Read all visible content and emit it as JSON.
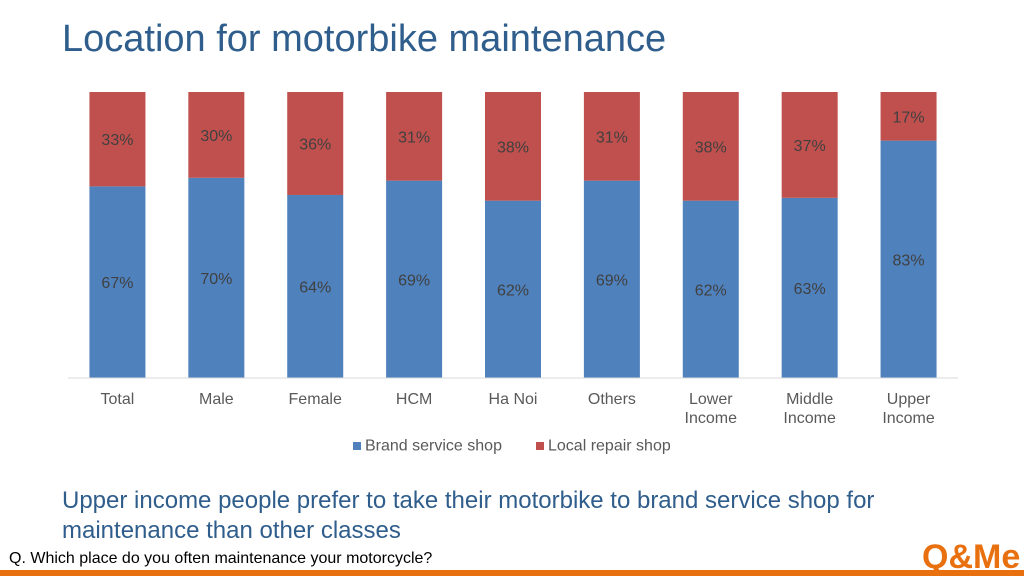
{
  "page": {
    "title": "Location for motorbike maintenance",
    "insight": "Upper income people prefer to take their motorbike to brand service shop for maintenance than other classes",
    "question": "Q. Which place do you often maintenance your motorcycle?",
    "logo": {
      "text": "Q&Me",
      "color": "#e8700f"
    }
  },
  "chart_data": {
    "type": "bar",
    "stacked": true,
    "percent": true,
    "title": "Location for motorbike maintenance",
    "categories": [
      [
        "Total"
      ],
      [
        "Male"
      ],
      [
        "Female"
      ],
      [
        "HCM"
      ],
      [
        "Ha Noi"
      ],
      [
        "Others"
      ],
      [
        "Lower",
        "Income"
      ],
      [
        "Middle",
        "Income"
      ],
      [
        "Upper",
        "Income"
      ]
    ],
    "series": [
      {
        "name": "Brand service shop",
        "color": "#4f81bd",
        "values": [
          67,
          70,
          64,
          69,
          62,
          69,
          62,
          63,
          83
        ],
        "labels": [
          "67%",
          "70%",
          "64%",
          "69%",
          "62%",
          "69%",
          "62%",
          "63%",
          "83%"
        ]
      },
      {
        "name": "Local repair shop",
        "color": "#c0504d",
        "values": [
          33,
          30,
          36,
          31,
          38,
          31,
          38,
          37,
          17
        ],
        "labels": [
          "33%",
          "30%",
          "36%",
          "31%",
          "38%",
          "31%",
          "38%",
          "37%",
          "17%"
        ]
      }
    ],
    "ylim": [
      0,
      100
    ],
    "grid": false,
    "legend": "bottom"
  }
}
